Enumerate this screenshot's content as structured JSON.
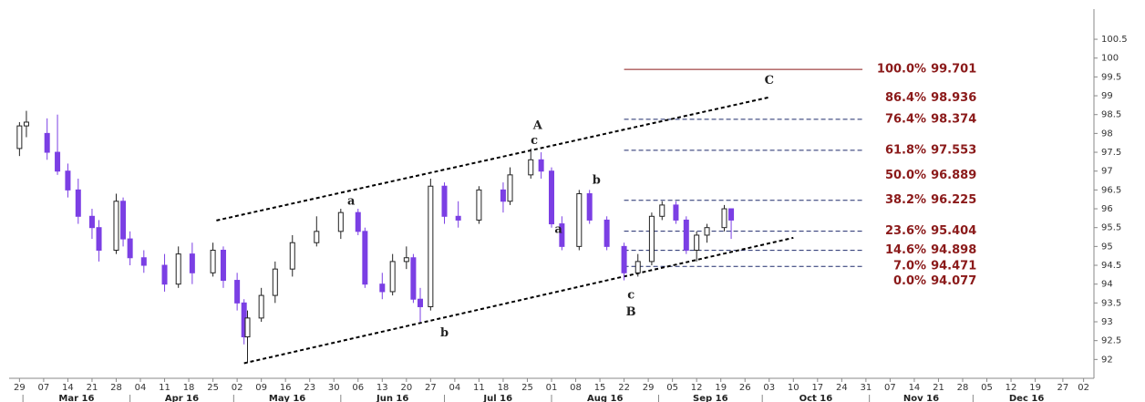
{
  "chart_data": {
    "type": "candlestick",
    "xlim": [
      "2016-02-26",
      "2017-01-05"
    ],
    "ylim": [
      91.5,
      101.3
    ],
    "yticks": [
      100.5,
      100,
      99.5,
      99,
      98.5,
      98,
      97.5,
      97,
      96.5,
      96,
      95.5,
      95,
      94.5,
      94,
      93.5,
      93,
      92.5,
      92
    ],
    "xticks": [
      {
        "value": "2016-02-29",
        "label": "29"
      },
      {
        "value": "2016-03-07",
        "label": "07"
      },
      {
        "value": "2016-03-14",
        "label": "14"
      },
      {
        "value": "2016-03-21",
        "label": "21"
      },
      {
        "value": "2016-03-28",
        "label": "28"
      },
      {
        "value": "2016-04-04",
        "label": "04"
      },
      {
        "value": "2016-04-11",
        "label": "11"
      },
      {
        "value": "2016-04-18",
        "label": "18"
      },
      {
        "value": "2016-04-25",
        "label": "25"
      },
      {
        "value": "2016-05-02",
        "label": "02"
      },
      {
        "value": "2016-05-09",
        "label": "09"
      },
      {
        "value": "2016-05-16",
        "label": "16"
      },
      {
        "value": "2016-05-23",
        "label": "23"
      },
      {
        "value": "2016-05-30",
        "label": "30"
      },
      {
        "value": "2016-06-06",
        "label": "06"
      },
      {
        "value": "2016-06-13",
        "label": "13"
      },
      {
        "value": "2016-06-20",
        "label": "20"
      },
      {
        "value": "2016-06-27",
        "label": "27"
      },
      {
        "value": "2016-07-04",
        "label": "04"
      },
      {
        "value": "2016-07-11",
        "label": "11"
      },
      {
        "value": "2016-07-18",
        "label": "18"
      },
      {
        "value": "2016-07-25",
        "label": "25"
      },
      {
        "value": "2016-08-01",
        "label": "01"
      },
      {
        "value": "2016-08-08",
        "label": "08"
      },
      {
        "value": "2016-08-15",
        "label": "15"
      },
      {
        "value": "2016-08-22",
        "label": "22"
      },
      {
        "value": "2016-08-29",
        "label": "29"
      },
      {
        "value": "2016-09-05",
        "label": "05"
      },
      {
        "value": "2016-09-12",
        "label": "12"
      },
      {
        "value": "2016-09-19",
        "label": "19"
      },
      {
        "value": "2016-09-26",
        "label": "26"
      },
      {
        "value": "2016-10-03",
        "label": "03"
      },
      {
        "value": "2016-10-10",
        "label": "10"
      },
      {
        "value": "2016-10-17",
        "label": "17"
      },
      {
        "value": "2016-10-24",
        "label": "24"
      },
      {
        "value": "2016-10-31",
        "label": "31"
      },
      {
        "value": "2016-11-07",
        "label": "07"
      },
      {
        "value": "2016-11-14",
        "label": "14"
      },
      {
        "value": "2016-11-21",
        "label": "21"
      },
      {
        "value": "2016-11-28",
        "label": "28"
      },
      {
        "value": "2016-12-05",
        "label": "05"
      },
      {
        "value": "2016-12-12",
        "label": "12"
      },
      {
        "value": "2016-12-19",
        "label": "19"
      },
      {
        "value": "2016-12-27",
        "label": "27"
      },
      {
        "value": "2017-01-02",
        "label": "02"
      }
    ],
    "months": [
      {
        "value": "2016-03",
        "label": "Mar 16"
      },
      {
        "value": "2016-04",
        "label": "Apr 16"
      },
      {
        "value": "2016-05",
        "label": "May 16"
      },
      {
        "value": "2016-06",
        "label": "Jun 16"
      },
      {
        "value": "2016-07",
        "label": "Jul 16"
      },
      {
        "value": "2016-08",
        "label": "Aug 16"
      },
      {
        "value": "2016-09",
        "label": "Sep 16"
      },
      {
        "value": "2016-10",
        "label": "Oct 16"
      },
      {
        "value": "2016-11",
        "label": "Nov 16"
      },
      {
        "value": "2016-12",
        "label": "Dec 16"
      }
    ],
    "up_color": "#222222",
    "down_color": "#7b3fe4",
    "x": [
      "2016-02-29",
      "2016-03-02",
      "2016-03-08",
      "2016-03-11",
      "2016-03-14",
      "2016-03-17",
      "2016-03-21",
      "2016-03-23",
      "2016-03-28",
      "2016-03-30",
      "2016-04-01",
      "2016-04-05",
      "2016-04-11",
      "2016-04-15",
      "2016-04-19",
      "2016-04-25",
      "2016-04-28",
      "2016-05-02",
      "2016-05-04",
      "2016-05-05",
      "2016-05-09",
      "2016-05-13",
      "2016-05-18",
      "2016-05-25",
      "2016-06-01",
      "2016-06-06",
      "2016-06-08",
      "2016-06-13",
      "2016-06-16",
      "2016-06-20",
      "2016-06-22",
      "2016-06-24",
      "2016-06-27",
      "2016-07-01",
      "2016-07-05",
      "2016-07-11",
      "2016-07-18",
      "2016-07-20",
      "2016-07-26",
      "2016-07-29",
      "2016-08-01",
      "2016-08-04",
      "2016-08-09",
      "2016-08-12",
      "2016-08-17",
      "2016-08-22",
      "2016-08-26",
      "2016-08-30",
      "2016-09-02",
      "2016-09-06",
      "2016-09-09",
      "2016-09-12",
      "2016-09-15",
      "2016-09-20",
      "2016-09-22"
    ],
    "open": [
      97.6,
      98.2,
      98.0,
      97.5,
      97.0,
      96.5,
      95.8,
      95.5,
      94.9,
      96.2,
      95.2,
      94.7,
      94.5,
      94.0,
      94.8,
      94.3,
      94.9,
      94.1,
      93.5,
      92.6,
      93.1,
      93.7,
      94.4,
      95.1,
      95.4,
      95.9,
      95.4,
      94.0,
      93.8,
      94.6,
      94.7,
      93.6,
      93.4,
      96.6,
      95.8,
      95.7,
      96.5,
      96.2,
      96.9,
      97.3,
      97.0,
      95.6,
      95.0,
      96.4,
      95.7,
      95.0,
      94.3,
      94.6,
      95.8,
      96.1,
      95.7,
      94.9,
      95.3,
      95.5,
      96.0
    ],
    "high": [
      98.3,
      98.6,
      98.4,
      98.5,
      97.2,
      96.8,
      96.0,
      95.7,
      96.4,
      96.3,
      95.4,
      94.9,
      94.8,
      95.0,
      95.1,
      95.1,
      95.0,
      94.3,
      93.6,
      93.3,
      93.9,
      94.6,
      95.3,
      95.8,
      96.0,
      96.0,
      95.5,
      94.3,
      94.8,
      95.0,
      94.8,
      93.9,
      96.8,
      96.7,
      96.2,
      96.6,
      96.7,
      97.1,
      97.6,
      97.5,
      97.1,
      95.8,
      96.5,
      96.5,
      95.8,
      95.1,
      94.8,
      95.9,
      96.2,
      96.2,
      95.8,
      95.4,
      95.6,
      96.1,
      96.0
    ],
    "low": [
      97.4,
      97.9,
      97.3,
      96.9,
      96.3,
      95.6,
      95.2,
      94.6,
      94.8,
      95.0,
      94.5,
      94.3,
      93.8,
      93.9,
      94.0,
      94.2,
      93.9,
      93.3,
      92.4,
      91.9,
      93.0,
      93.5,
      94.2,
      95.0,
      95.2,
      95.3,
      93.9,
      93.6,
      93.7,
      94.4,
      93.5,
      93.0,
      93.3,
      95.6,
      95.5,
      95.6,
      95.9,
      96.1,
      96.8,
      96.8,
      95.5,
      94.9,
      94.9,
      95.6,
      94.9,
      94.1,
      94.2,
      94.5,
      95.7,
      95.6,
      94.8,
      94.6,
      95.1,
      95.4,
      95.2
    ],
    "close": [
      98.2,
      98.3,
      97.5,
      97.0,
      96.5,
      95.8,
      95.5,
      94.9,
      96.2,
      95.2,
      94.7,
      94.5,
      94.0,
      94.8,
      94.3,
      94.9,
      94.1,
      93.5,
      92.6,
      93.1,
      93.7,
      94.4,
      95.1,
      95.4,
      95.9,
      95.4,
      94.0,
      93.8,
      94.6,
      94.7,
      93.6,
      93.4,
      96.6,
      95.8,
      95.7,
      96.5,
      96.2,
      96.9,
      97.3,
      97.0,
      95.6,
      95.0,
      96.4,
      95.7,
      95.0,
      94.3,
      94.6,
      95.8,
      96.1,
      95.7,
      94.9,
      95.3,
      95.5,
      96.0,
      95.7
    ],
    "fib_range": {
      "start": "2016-08-22",
      "end": "2016-10-30"
    },
    "fib_color": "#8b1a1a",
    "fib_line_color": "#1f2a6b",
    "fib_levels": [
      {
        "level": "100.0%",
        "value": 99.701,
        "style": "solid"
      },
      {
        "level": "86.4%",
        "value": 98.936,
        "style": "none"
      },
      {
        "level": "76.4%",
        "value": 98.374,
        "style": "dashed"
      },
      {
        "level": "61.8%",
        "value": 97.553,
        "style": "dashed"
      },
      {
        "level": "50.0%",
        "value": 96.889,
        "style": "none"
      },
      {
        "level": "38.2%",
        "value": 96.225,
        "style": "dashed"
      },
      {
        "level": "23.6%",
        "value": 95.404,
        "style": "dashed"
      },
      {
        "level": "14.6%",
        "value": 94.898,
        "style": "dashed"
      },
      {
        "level": "7.0%",
        "value": 94.471,
        "style": "dashed"
      },
      {
        "level": "0.0%",
        "value": 94.077,
        "style": "none"
      }
    ],
    "trendlines": [
      {
        "x": [
          "2016-04-26",
          "2016-10-03"
        ],
        "y": [
          95.69,
          98.96
        ]
      },
      {
        "x": [
          "2016-05-04",
          "2016-10-10"
        ],
        "y": [
          91.9,
          95.23
        ]
      }
    ],
    "annotations": [
      {
        "text": "A",
        "x": "2016-07-28",
        "y": 98.2
      },
      {
        "text": "c",
        "x": "2016-07-27",
        "y": 97.8
      },
      {
        "text": "a",
        "x": "2016-06-04",
        "y": 96.2
      },
      {
        "text": "b",
        "x": "2016-07-01",
        "y": 92.7
      },
      {
        "text": "a",
        "x": "2016-08-03",
        "y": 95.45
      },
      {
        "text": "b",
        "x": "2016-08-14",
        "y": 96.75
      },
      {
        "text": "c",
        "x": "2016-08-24",
        "y": 93.7
      },
      {
        "text": "B",
        "x": "2016-08-24",
        "y": 93.25
      },
      {
        "text": "C",
        "x": "2016-10-03",
        "y": 99.4
      }
    ]
  }
}
